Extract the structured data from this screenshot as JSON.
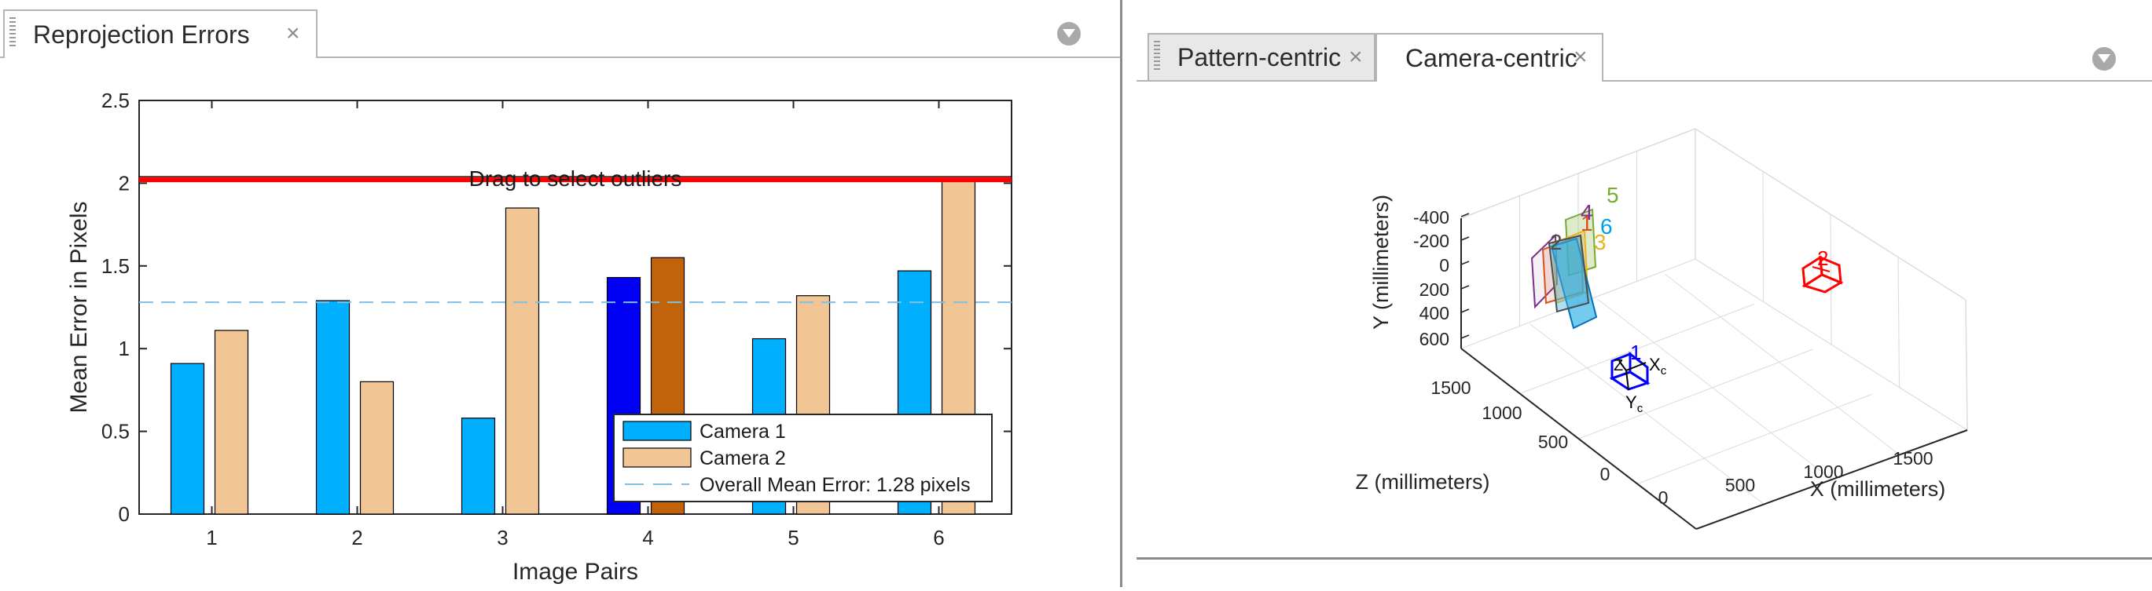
{
  "left_panel": {
    "tab": {
      "label": "Reprojection Errors",
      "close": "×"
    }
  },
  "right_panel": {
    "tabs": [
      {
        "label": "Pattern-centric",
        "close": "×",
        "active": false
      },
      {
        "label": "Camera-centric",
        "close": "×",
        "active": true
      }
    ]
  },
  "chart_data": [
    {
      "type": "bar",
      "xlabel": "Image Pairs",
      "ylabel": "Mean Error in Pixels",
      "categories": [
        "1",
        "2",
        "3",
        "4",
        "5",
        "6"
      ],
      "ylim": [
        0,
        2.5
      ],
      "yticks": [
        "0",
        "0.5",
        "1",
        "1.5",
        "2",
        "2.5"
      ],
      "series": [
        {
          "name": "Camera 1",
          "values": [
            0.91,
            1.29,
            0.58,
            1.43,
            1.06,
            1.47
          ],
          "color": "#00b0ff"
        },
        {
          "name": "Camera 2",
          "values": [
            1.11,
            0.8,
            1.85,
            1.55,
            1.32,
            2.02
          ],
          "color": "#f2c595"
        }
      ],
      "selected_category": "4",
      "selected_colors": {
        "Camera 1": "#0000f5",
        "Camera 2": "#c0630a"
      },
      "overall_mean": {
        "label": "Overall Mean Error: 1.28 pixels",
        "value": 1.28,
        "color": "#7fbfdf"
      },
      "threshold": {
        "label": "Drag to select outliers",
        "value": 2.02,
        "color": "#ff0000"
      },
      "legend_position": "bottom-right",
      "grid": false
    },
    {
      "type": "3d-extrinsics",
      "xlabel": "X (millimeters)",
      "ylabel": "Y (millimeters)",
      "zlabel": "Z (millimeters)",
      "x_ticks": [
        "0",
        "500",
        "1000",
        "1500"
      ],
      "y_ticks": [
        "-400",
        "-200",
        "0",
        "200",
        "400",
        "600"
      ],
      "z_ticks": [
        "0",
        "500",
        "1000",
        "1500"
      ],
      "camera1_label": "1",
      "camera2_label": "2",
      "axis_label_x": "X",
      "axis_label_x_sub": "c",
      "axis_label_y": "Y",
      "axis_label_y_sub": "c",
      "axis_label_z": "Z",
      "pattern_labels": [
        "1",
        "2",
        "3",
        "4",
        "5",
        "6"
      ],
      "pattern_colors": [
        "#d95319",
        "#4d4d4d",
        "#edb120",
        "#7e2f8e",
        "#77ac30",
        "#00a0e0"
      ],
      "grid": true
    }
  ]
}
